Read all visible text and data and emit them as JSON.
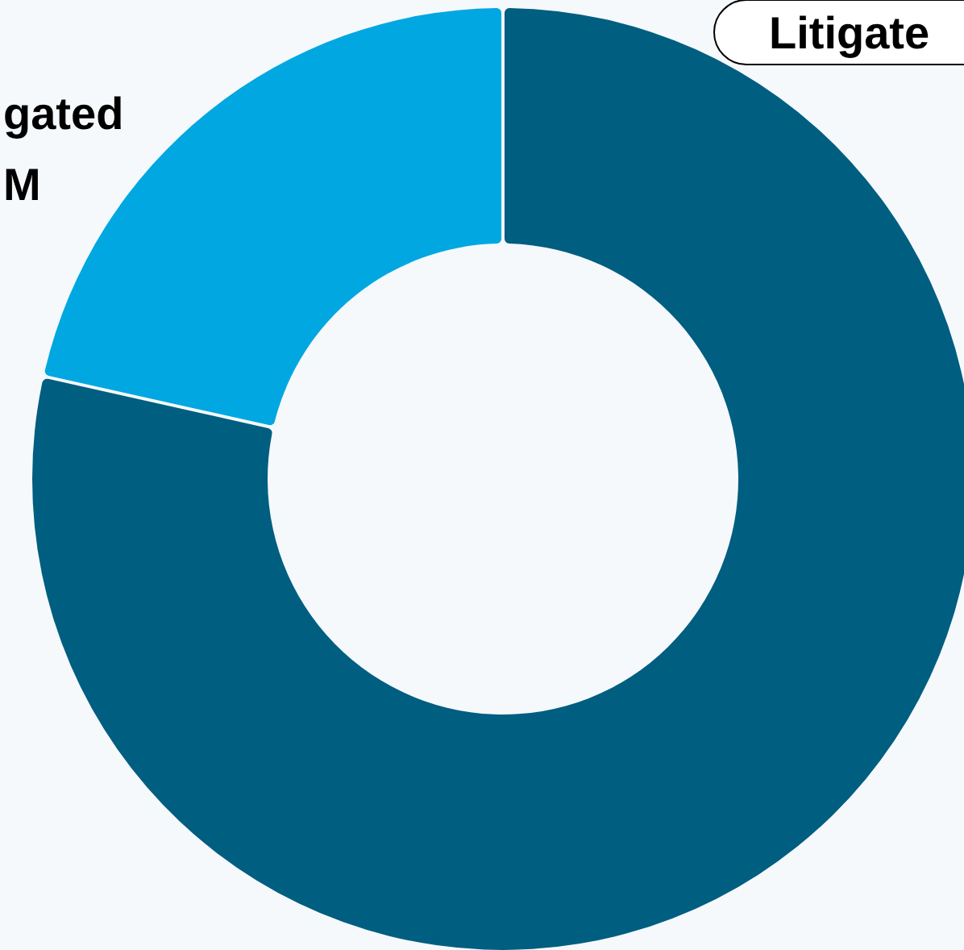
{
  "chart_data": {
    "type": "donut",
    "categories": [
      "Litigate",
      "gated\nM"
    ],
    "values": [
      78.5,
      21.5
    ],
    "colors": [
      "#005e80",
      "#00a7e1"
    ]
  }
}
